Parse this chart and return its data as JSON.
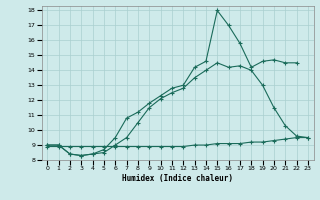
{
  "xlabel": "Humidex (Indice chaleur)",
  "background_color": "#ceeaea",
  "grid_color": "#aacfcf",
  "line_color": "#1a6b5a",
  "xlim": [
    -0.5,
    23.5
  ],
  "ylim": [
    8,
    18.3
  ],
  "xticks": [
    0,
    1,
    2,
    3,
    4,
    5,
    6,
    7,
    8,
    9,
    10,
    11,
    12,
    13,
    14,
    15,
    16,
    17,
    18,
    19,
    20,
    21,
    22,
    23
  ],
  "yticks": [
    8,
    9,
    10,
    11,
    12,
    13,
    14,
    15,
    16,
    17,
    18
  ],
  "line1_x": [
    0,
    1,
    2,
    3,
    4,
    5,
    6,
    7,
    8,
    9,
    10,
    11,
    12,
    13,
    14,
    15,
    16,
    17,
    18,
    19,
    20,
    21,
    22,
    23
  ],
  "line1_y": [
    8.9,
    8.9,
    8.9,
    8.9,
    8.9,
    8.9,
    8.9,
    8.9,
    8.9,
    8.9,
    8.9,
    8.9,
    8.9,
    9.0,
    9.0,
    9.1,
    9.1,
    9.1,
    9.2,
    9.2,
    9.3,
    9.4,
    9.5,
    9.5
  ],
  "line2_x": [
    0,
    1,
    2,
    3,
    4,
    5,
    6,
    7,
    8,
    9,
    10,
    11,
    12,
    13,
    14,
    15,
    16,
    17,
    18,
    19,
    20,
    21,
    22,
    23
  ],
  "line2_y": [
    9.0,
    9.0,
    8.4,
    8.3,
    8.4,
    8.5,
    9.0,
    9.5,
    10.5,
    11.5,
    12.1,
    12.5,
    12.8,
    13.5,
    14.0,
    14.5,
    14.2,
    14.3,
    14.0,
    13.0,
    11.5,
    10.3,
    9.6,
    9.5
  ],
  "line3_x": [
    0,
    1,
    2,
    3,
    4,
    5,
    6,
    7,
    8,
    9,
    10,
    11,
    12,
    13,
    14,
    15,
    16,
    17,
    18,
    19,
    20,
    21,
    22
  ],
  "line3_y": [
    9.0,
    9.0,
    8.4,
    8.3,
    8.4,
    8.7,
    9.5,
    10.8,
    11.2,
    11.8,
    12.3,
    12.8,
    13.0,
    14.2,
    14.6,
    18.0,
    17.0,
    15.8,
    14.2,
    14.6,
    14.7,
    14.5,
    14.5
  ]
}
